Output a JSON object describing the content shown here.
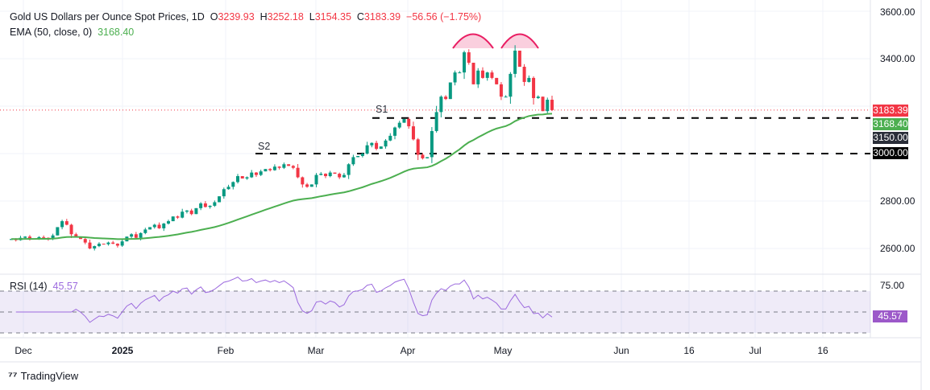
{
  "header": {
    "symbol": "Gold US Dollars per Ounce Spot Prices, 1D",
    "o_label": "O",
    "o": "3239.93",
    "h_label": "H",
    "h": "3252.18",
    "l_label": "L",
    "l": "3154.35",
    "c_label": "C",
    "c": "3183.39",
    "change": "−56.56 (−1.75%)"
  },
  "ema": {
    "label": "EMA (50, close, 0)",
    "value": "3168.40"
  },
  "rsi": {
    "label": "RSI (14)",
    "value": "45.57"
  },
  "price_axis": {
    "ticks": [
      "3600.00",
      "3400.00",
      "2800.00",
      "2600.00"
    ],
    "tags": {
      "last": "3183.39",
      "ema": "3168.40",
      "s1": "3150.00",
      "s2": "3000.00"
    }
  },
  "rsi_axis": {
    "ticks": [
      "75.00"
    ],
    "tag": "45.57"
  },
  "time_axis": [
    "Dec",
    "2025",
    "Feb",
    "Mar",
    "Apr",
    "May",
    "Jun",
    "16",
    "Jul",
    "16"
  ],
  "annotations": {
    "s1": "S1",
    "s2": "S2"
  },
  "brand": "TradingView",
  "colors": {
    "up": "#089981",
    "down": "#f23645",
    "ema": "#4caf50",
    "rsi": "#9c6ade",
    "arc": "#e91e63"
  },
  "chart_data": {
    "type": "candlestick",
    "title": "Gold US Dollars per Ounce Spot Prices, 1D",
    "interval": "1D",
    "x_range": [
      "Dec 2024",
      "Jul 2025"
    ],
    "ylim": [
      2560,
      3620
    ],
    "levels": [
      {
        "label": "S1",
        "value": 3150
      },
      {
        "label": "S2",
        "value": 3000
      }
    ],
    "closes": [
      2640,
      2635,
      2645,
      2650,
      2638,
      2642,
      2648,
      2645,
      2640,
      2655,
      2690,
      2715,
      2700,
      2660,
      2650,
      2640,
      2625,
      2600,
      2610,
      2620,
      2618,
      2625,
      2620,
      2612,
      2630,
      2650,
      2660,
      2645,
      2665,
      2680,
      2690,
      2700,
      2685,
      2705,
      2715,
      2735,
      2730,
      2755,
      2760,
      2745,
      2770,
      2790,
      2775,
      2780,
      2795,
      2820,
      2850,
      2860,
      2880,
      2905,
      2895,
      2900,
      2920,
      2910,
      2925,
      2935,
      2930,
      2945,
      2940,
      2955,
      2948,
      2940,
      2900,
      2870,
      2860,
      2870,
      2910,
      2915,
      2905,
      2920,
      2915,
      2900,
      2910,
      2955,
      2985,
      2990,
      3000,
      3035,
      3045,
      3020,
      3030,
      3055,
      3075,
      3110,
      3130,
      3146,
      3115,
      3060,
      2995,
      2980,
      2985,
      3095,
      3175,
      3240,
      3230,
      3300,
      3342,
      3342,
      3427,
      3383,
      3292,
      3350,
      3319,
      3342,
      3319,
      3292,
      3240,
      3240,
      3336,
      3434,
      3366,
      3302,
      3319,
      3234,
      3240,
      3179,
      3227,
      3183.39
    ],
    "indicators": {
      "ema_period": 50,
      "rsi_period": 14,
      "rsi_levels": [
        70,
        50,
        30
      ]
    }
  }
}
